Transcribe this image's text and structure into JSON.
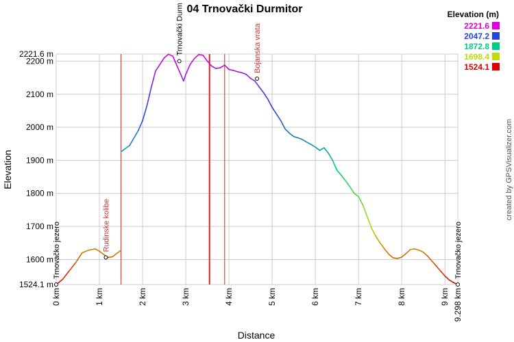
{
  "chart_data": {
    "type": "line",
    "title": "04 Trnovački Durmitor",
    "xlabel": "Distance",
    "ylabel": "Elevation",
    "xlim": [
      0,
      9.298
    ],
    "ylim": [
      1524.1,
      2221.6
    ],
    "x_ticks": [
      {
        "v": 0,
        "label": "0 km"
      },
      {
        "v": 1,
        "label": "1 km"
      },
      {
        "v": 2,
        "label": "2 km"
      },
      {
        "v": 3,
        "label": "3 km"
      },
      {
        "v": 4,
        "label": "4 km"
      },
      {
        "v": 5,
        "label": "5 km"
      },
      {
        "v": 6,
        "label": "6 km"
      },
      {
        "v": 7,
        "label": "7 km"
      },
      {
        "v": 8,
        "label": "8 km"
      },
      {
        "v": 9,
        "label": "9 km"
      },
      {
        "v": 9.298,
        "label": "9.298 km"
      }
    ],
    "y_ticks": [
      {
        "v": 1524.1,
        "label": "1524.1 m"
      },
      {
        "v": 1600,
        "label": "1600 m"
      },
      {
        "v": 1700,
        "label": "1700 m"
      },
      {
        "v": 1800,
        "label": "1800 m"
      },
      {
        "v": 1900,
        "label": "1900 m"
      },
      {
        "v": 2000,
        "label": "2000 m"
      },
      {
        "v": 2100,
        "label": "2100 m"
      },
      {
        "v": 2200,
        "label": "2200 m"
      },
      {
        "v": 2221.6,
        "label": "2221.6 m"
      }
    ],
    "segments": [
      {
        "x": [
          0,
          0.15,
          0.3,
          0.45,
          0.6,
          0.75,
          0.9,
          1.0,
          1.1,
          1.2,
          1.3,
          1.4,
          1.48
        ],
        "y": [
          1524,
          1540,
          1565,
          1590,
          1620,
          1628,
          1632,
          1625,
          1615,
          1606,
          1608,
          1618,
          1626
        ]
      },
      {
        "x": [
          1.5,
          1.7,
          1.9,
          2.0,
          2.1,
          2.2,
          2.3,
          2.4,
          2.5,
          2.6,
          2.7,
          2.75,
          2.85,
          2.95,
          3.0,
          3.1,
          3.2,
          3.3,
          3.4,
          3.5,
          3.6,
          3.7,
          3.8,
          3.9,
          4.0,
          4.1,
          4.2,
          4.3,
          4.4,
          4.5,
          4.6,
          4.7,
          4.8,
          4.9,
          5.0,
          5.1,
          5.2,
          5.3,
          5.4,
          5.5,
          5.6,
          5.7,
          5.8,
          5.9,
          6.0,
          6.1,
          6.2,
          6.3,
          6.4,
          6.5,
          6.6,
          6.7,
          6.8,
          6.9,
          6.95,
          7.0,
          7.1,
          7.2,
          7.3,
          7.4,
          7.5,
          7.6,
          7.7,
          7.8,
          7.9,
          8.0,
          8.1,
          8.2,
          8.3,
          8.4,
          8.5,
          8.6,
          8.7,
          8.8,
          8.9,
          9.0,
          9.1,
          9.2,
          9.298
        ],
        "y": [
          1926,
          1945,
          1990,
          2020,
          2065,
          2120,
          2170,
          2190,
          2210,
          2221,
          2215,
          2200,
          2170,
          2140,
          2160,
          2190,
          2208,
          2220,
          2218,
          2200,
          2185,
          2178,
          2180,
          2188,
          2175,
          2172,
          2168,
          2165,
          2160,
          2148,
          2140,
          2122,
          2105,
          2085,
          2060,
          2040,
          2020,
          1995,
          1982,
          1972,
          1968,
          1963,
          1955,
          1948,
          1940,
          1930,
          1938,
          1922,
          1900,
          1870,
          1855,
          1838,
          1820,
          1800,
          1795,
          1790,
          1765,
          1730,
          1695,
          1670,
          1650,
          1632,
          1616,
          1605,
          1603,
          1607,
          1618,
          1630,
          1632,
          1628,
          1622,
          1610,
          1595,
          1580,
          1565,
          1550,
          1538,
          1530,
          1524
        ]
      }
    ],
    "waypoints": [
      {
        "label": "Trnovačko jezero",
        "x": 0,
        "y": 1524.1
      },
      {
        "label": "Rudinske kolibe",
        "x": 1.15,
        "y": 1606
      },
      {
        "label": "Trnovački Durm",
        "x": 2.85,
        "y": 2200
      },
      {
        "label": "Bojanska vrata",
        "x": 4.65,
        "y": 2147
      },
      {
        "label": "Trnovačko jezero",
        "x": 9.298,
        "y": 1524.1
      }
    ],
    "markers_x": [
      1.5,
      3.55,
      3.9
    ],
    "legend": {
      "title": "Elevation (m)",
      "entries": [
        {
          "label": "2221.6",
          "color": "#dd00dd"
        },
        {
          "label": "2047.2",
          "color": "#2244dd"
        },
        {
          "label": "1872.8",
          "color": "#00cc88"
        },
        {
          "label": "1698.4",
          "color": "#bbdd00"
        },
        {
          "label": "1524.1",
          "color": "#dd0000"
        }
      ]
    },
    "grid": true,
    "credit": "created by GPSVisualizer.com"
  }
}
